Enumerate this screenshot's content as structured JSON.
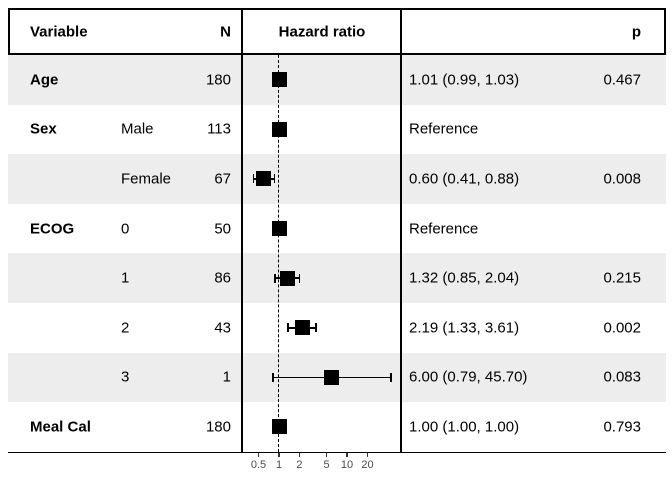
{
  "title": "Hazard ratio forest plot table",
  "header": {
    "variable": "Variable",
    "n": "N",
    "hazard_ratio": "Hazard ratio",
    "p": "p"
  },
  "colors": {
    "stripe": "#ededed",
    "border": "#000000",
    "marker": "#000000",
    "axis_text": "#4d4d4d",
    "background": "#ffffff"
  },
  "chart_data": {
    "type": "forest",
    "title": "",
    "xlabel": "",
    "x_axis": {
      "scale": "log",
      "ticks": [
        0.5,
        1,
        2,
        5,
        10,
        20
      ],
      "tick_labels": [
        "0.5",
        "1",
        "2",
        "5",
        "10",
        "20"
      ],
      "reference_line": 1,
      "xlim": [
        0.35,
        60
      ]
    },
    "legend": "none",
    "rows": [
      {
        "variable": "Age",
        "level": "",
        "n": "180",
        "hr": 1.01,
        "lo": 0.99,
        "hi": 1.03,
        "estimate_label": "1.01 (0.99, 1.03)",
        "p": "0.467",
        "reference": false,
        "shaded": true
      },
      {
        "variable": "Sex",
        "level": "Male",
        "n": "113",
        "hr": 1.0,
        "lo": null,
        "hi": null,
        "estimate_label": "Reference",
        "p": "",
        "reference": true,
        "shaded": false
      },
      {
        "variable": "",
        "level": "Female",
        "n": "67",
        "hr": 0.6,
        "lo": 0.41,
        "hi": 0.88,
        "estimate_label": "0.60 (0.41, 0.88)",
        "p": "0.008",
        "reference": false,
        "shaded": true
      },
      {
        "variable": "ECOG",
        "level": "0",
        "n": "50",
        "hr": 1.0,
        "lo": null,
        "hi": null,
        "estimate_label": "Reference",
        "p": "",
        "reference": true,
        "shaded": false
      },
      {
        "variable": "",
        "level": "1",
        "n": "86",
        "hr": 1.32,
        "lo": 0.85,
        "hi": 2.04,
        "estimate_label": "1.32 (0.85, 2.04)",
        "p": "0.215",
        "reference": false,
        "shaded": true
      },
      {
        "variable": "",
        "level": "2",
        "n": "43",
        "hr": 2.19,
        "lo": 1.33,
        "hi": 3.61,
        "estimate_label": "2.19 (1.33, 3.61)",
        "p": "0.002",
        "reference": false,
        "shaded": false
      },
      {
        "variable": "",
        "level": "3",
        "n": "1",
        "hr": 6.0,
        "lo": 0.79,
        "hi": 45.7,
        "estimate_label": "6.00 (0.79, 45.70)",
        "p": "0.083",
        "reference": false,
        "shaded": true
      },
      {
        "variable": "Meal Cal",
        "level": "",
        "n": "180",
        "hr": 1.0,
        "lo": 1.0,
        "hi": 1.0,
        "estimate_label": "1.00 (1.00, 1.00)",
        "p": "0.793",
        "reference": false,
        "shaded": false
      }
    ]
  }
}
